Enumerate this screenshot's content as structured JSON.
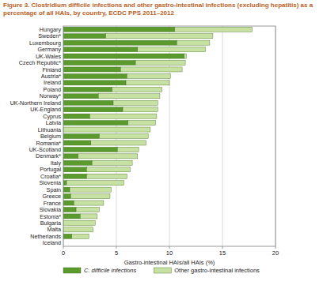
{
  "chart_data": {
    "type": "bar",
    "orientation": "horizontal",
    "stacked": true,
    "title": "Figure 3. Clostridium difficile infections and other gastro-intestinal infections (excluding hepatitis) as a percentage of all HAIs, by country, ECDC PPS 2011–2012",
    "x_label": "Gastro-intestinal HAIs/all HAIs (%)",
    "categories": [
      "Hungary",
      "Sweden*",
      "Luxembourg",
      "Germany",
      "UK-Wales",
      "Czech Republic*",
      "Finland",
      "Austria*",
      "Ireland",
      "Poland",
      "Norway*",
      "UK-Northern Ireland",
      "UK-England",
      "Cyprus",
      "Latvia",
      "Lithuania",
      "Belgium",
      "Romania*",
      "UK-Scotland",
      "Denmark*",
      "Italy",
      "Portugal",
      "Croatia*",
      "Slovenia",
      "Spain",
      "Greece",
      "France",
      "Slovakia",
      "Estonia*",
      "Bulgaria",
      "Malta",
      "Netherlands",
      "Iceland"
    ],
    "series": [
      {
        "name": "C. difficile infections",
        "color": "#5b9a2c",
        "values": [
          10.5,
          4.0,
          10.7,
          7.0,
          11.4,
          6.8,
          5.4,
          6.0,
          5.9,
          4.6,
          3.3,
          4.7,
          5.6,
          2.5,
          6.1,
          0,
          3.4,
          2.6,
          5.1,
          1.4,
          2.7,
          2.2,
          2.2,
          0.3,
          0.6,
          0.7,
          1.0,
          1.2,
          1.6,
          0,
          0,
          0.8,
          0
        ]
      },
      {
        "name": "Other gastro-intestinal infections",
        "color": "#c6e1a2",
        "values": [
          7.3,
          10.1,
          3.1,
          6.4,
          0.2,
          4.7,
          5.8,
          4.1,
          4.1,
          4.7,
          5.8,
          4.2,
          3.3,
          6.3,
          2.6,
          8.2,
          4.6,
          5.2,
          2.0,
          5.6,
          3.8,
          4.1,
          3.8,
          5.4,
          3.9,
          3.7,
          2.8,
          2.2,
          1.6,
          3.0,
          2.8,
          1.6,
          0
        ]
      }
    ],
    "xlim": [
      0,
      20
    ],
    "xticks": [
      0,
      5,
      10,
      15,
      20
    ],
    "grid": true,
    "legend": "bottom"
  }
}
